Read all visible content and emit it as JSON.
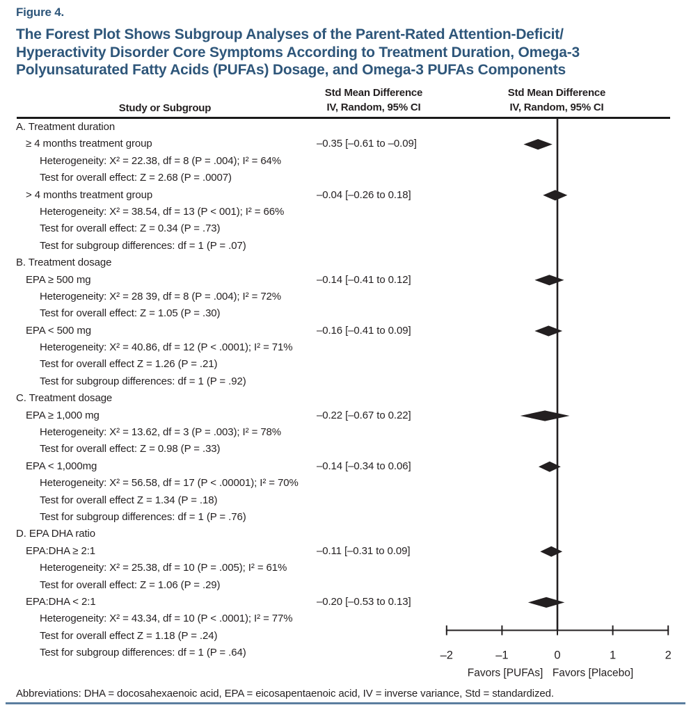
{
  "figure_label": "Figure 4.",
  "title_lines": [
    "The Forest Plot Shows Subgroup Analyses of the Parent-Rated Attention-Deficit/",
    "Hyperactivity Disorder Core Symptoms According to Treatment Duration, Omega-3",
    "Polyunsaturated Fatty Acids (PUFAs) Dosage, and Omega-3 PUFAs Components"
  ],
  "columns": {
    "study_header": "Study or Subgroup",
    "estimate_header_line1": "Std Mean Difference",
    "estimate_header_line2": "IV, Random, 95% CI",
    "plot_header_line1": "Std Mean Difference",
    "plot_header_line2": "IV, Random, 95% CI"
  },
  "footer": "Abbreviations: DHA = docosahexaenoic acid, EPA = eicosapentaenoic acid, IV = inverse variance, Std = standardized.",
  "colors": {
    "title_blue": "#2E567A",
    "body_text": "#231F20",
    "diamond": "#231F20",
    "footer_rule_blue": "#5B7E9F"
  },
  "chart_data": {
    "type": "forest",
    "effect_measure": "Std Mean Difference (IV, Random, 95% CI)",
    "axis": {
      "min": -2,
      "max": 2,
      "ticks": [
        -2,
        -1,
        0,
        1,
        2
      ],
      "tick_labels": [
        "–2",
        "–1",
        "0",
        "1",
        "2"
      ]
    },
    "favors_left": "Favors [PUFAs]",
    "favors_right": "Favors [Placebo]",
    "sections": [
      {
        "label": "A. Treatment duration",
        "subgroups": [
          {
            "label": "≥ 4 months treatment group",
            "estimate_text": "–0.35 [–0.61 to –0.09]",
            "mean": -0.35,
            "ci_low": -0.61,
            "ci_high": -0.09,
            "details": [
              "Heterogeneity: X² = 22.38, df = 8 (P = .004); I² = 64%",
              "Test for overall effect: Z = 2.68 (P = .0007)"
            ]
          },
          {
            "label": "> 4 months treatment group",
            "estimate_text": "–0.04 [–0.26 to 0.18]",
            "mean": -0.04,
            "ci_low": -0.26,
            "ci_high": 0.18,
            "details": [
              "Heterogeneity: X² = 38.54, df = 13 (P < 001); I² = 66%",
              "Test for overall effect: Z = 0.34 (P = .73)"
            ]
          }
        ],
        "subgroup_difference": "Test for subgroup differences: df = 1 (P = .07)"
      },
      {
        "label": "B. Treatment dosage",
        "subgroups": [
          {
            "label": "EPA ≥ 500 mg",
            "estimate_text": "–0.14 [–0.41 to 0.12]",
            "mean": -0.14,
            "ci_low": -0.41,
            "ci_high": 0.12,
            "details": [
              "Heterogeneity: X² = 28 39, df = 8 (P = .004); I² = 72%",
              "Test for overall effect: Z = 1.05 (P = .30)"
            ]
          },
          {
            "label": "EPA < 500 mg",
            "estimate_text": "–0.16 [–0.41 to 0.09]",
            "mean": -0.16,
            "ci_low": -0.41,
            "ci_high": 0.09,
            "details": [
              "Heterogeneity: X² = 40.86, df = 12 (P < .0001); I² = 71%",
              "Test for overall effect Z = 1.26 (P = .21)"
            ]
          }
        ],
        "subgroup_difference": "Test for subgroup differences: df = 1 (P = .92)"
      },
      {
        "label": "C. Treatment dosage",
        "subgroups": [
          {
            "label": "EPA ≥ 1,000 mg",
            "estimate_text": "–0.22 [–0.67 to 0.22]",
            "mean": -0.22,
            "ci_low": -0.67,
            "ci_high": 0.22,
            "details": [
              "Heterogeneity: X² = 13.62, df = 3 (P = .003); I² = 78%",
              "Test for overall effect: Z = 0.98 (P = .33)"
            ]
          },
          {
            "label": "EPA < 1,000mg",
            "estimate_text": "–0.14 [–0.34 to 0.06]",
            "mean": -0.14,
            "ci_low": -0.34,
            "ci_high": 0.06,
            "details": [
              "Heterogeneity: X² = 56.58, df = 17 (P < .00001); I² = 70%",
              "Test for overall effect Z = 1.34 (P = .18)"
            ]
          }
        ],
        "subgroup_difference": "Test for subgroup differences: df = 1 (P = .76)"
      },
      {
        "label": "D. EPA DHA ratio",
        "subgroups": [
          {
            "label": "EPA:DHA ≥ 2:1",
            "estimate_text": "–0.11 [–0.31 to 0.09]",
            "mean": -0.11,
            "ci_low": -0.31,
            "ci_high": 0.09,
            "details": [
              "Heterogeneity: X² = 25.38, df = 10 (P = .005); I² = 61%",
              "Test for overall effect: Z = 1.06 (P = .29)"
            ]
          },
          {
            "label": "EPA:DHA < 2:1",
            "estimate_text": "–0.20 [–0.53 to 0.13]",
            "mean": -0.2,
            "ci_low": -0.53,
            "ci_high": 0.13,
            "details": [
              "Heterogeneity: X² = 43.34, df = 10 (P < .0001); I² = 77%",
              "Test for overall effect Z = 1.18 (P = .24)"
            ]
          }
        ],
        "subgroup_difference": "Test for subgroup differences: df = 1 (P = .64)"
      }
    ]
  }
}
